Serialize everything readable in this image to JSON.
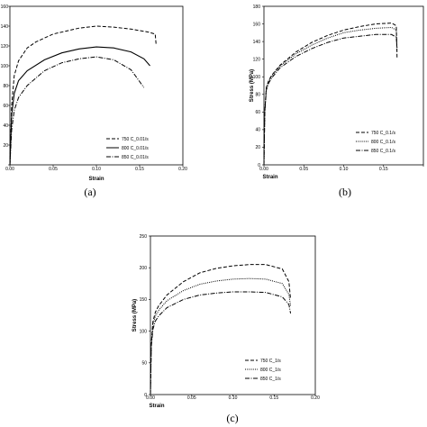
{
  "chart_data": [
    {
      "type": "line",
      "panel_label": "(a)",
      "xlabel": "Strain",
      "ylabel": "",
      "xlim": [
        0,
        0.2
      ],
      "ylim": [
        0,
        160
      ],
      "xticks": [
        "0.00",
        "0.05",
        "0.10",
        "0.15",
        "0.20"
      ],
      "yticks": [
        "",
        "20",
        "40",
        "60",
        "80",
        "100",
        "120",
        "140",
        "160"
      ],
      "legend_position": "bottom-right",
      "series": [
        {
          "name": "750 C_0.01/s",
          "style": "dashed",
          "x": [
            0,
            0.002,
            0.005,
            0.01,
            0.02,
            0.03,
            0.05,
            0.08,
            0.1,
            0.12,
            0.14,
            0.16,
            0.168,
            0.169
          ],
          "y": [
            0,
            60,
            90,
            105,
            118,
            124,
            132,
            138,
            140,
            139,
            137,
            134,
            132,
            122
          ]
        },
        {
          "name": "800 C_0.01/s",
          "style": "solid",
          "x": [
            0,
            0.002,
            0.005,
            0.01,
            0.02,
            0.04,
            0.06,
            0.08,
            0.1,
            0.12,
            0.14,
            0.155,
            0.162
          ],
          "y": [
            0,
            50,
            72,
            85,
            95,
            106,
            113,
            117,
            119,
            118,
            114,
            107,
            100
          ]
        },
        {
          "name": "850 C_0.01/s",
          "style": "dash-dot",
          "x": [
            0,
            0.002,
            0.005,
            0.01,
            0.02,
            0.04,
            0.06,
            0.08,
            0.1,
            0.12,
            0.14,
            0.155
          ],
          "y": [
            0,
            35,
            55,
            68,
            80,
            95,
            103,
            107,
            109,
            106,
            96,
            78
          ]
        }
      ]
    },
    {
      "type": "line",
      "panel_label": "(b)",
      "xlabel": "Strain",
      "ylabel": "Stress (MPa)",
      "xlim": [
        0,
        0.2
      ],
      "ylim": [
        0,
        180
      ],
      "xticks": [
        "0.00",
        "0.05",
        "0.10",
        "0.15",
        ""
      ],
      "yticks": [
        "0",
        "20",
        "40",
        "60",
        "80",
        "100",
        "120",
        "140",
        "160",
        "180"
      ],
      "legend_position": "bottom-right",
      "series": [
        {
          "name": "750 C_0.1/s",
          "style": "dashed",
          "x": [
            0,
            0.001,
            0.003,
            0.006,
            0.01,
            0.02,
            0.04,
            0.06,
            0.08,
            0.1,
            0.12,
            0.14,
            0.16,
            0.166,
            0.167
          ],
          "y": [
            0,
            60,
            88,
            96,
            102,
            113,
            128,
            139,
            147,
            153,
            157,
            160,
            161,
            158,
            120
          ]
        },
        {
          "name": "800 C_0.1/s",
          "style": "dotted",
          "x": [
            0,
            0.001,
            0.003,
            0.006,
            0.01,
            0.02,
            0.04,
            0.06,
            0.08,
            0.1,
            0.12,
            0.14,
            0.16,
            0.166,
            0.167
          ],
          "y": [
            0,
            60,
            87,
            95,
            101,
            112,
            126,
            136,
            144,
            150,
            153,
            155,
            156,
            153,
            128
          ]
        },
        {
          "name": "850 C_0.1/s",
          "style": "dash-dot",
          "x": [
            0,
            0.001,
            0.003,
            0.006,
            0.01,
            0.02,
            0.04,
            0.06,
            0.08,
            0.1,
            0.12,
            0.14,
            0.16,
            0.166,
            0.167
          ],
          "y": [
            0,
            58,
            85,
            93,
            99,
            110,
            123,
            132,
            139,
            144,
            146,
            148,
            148,
            145,
            133
          ]
        }
      ]
    },
    {
      "type": "line",
      "panel_label": "(c)",
      "xlabel": "Strain",
      "ylabel": "Stress (MPa)",
      "xlim": [
        0,
        0.2
      ],
      "ylim": [
        0,
        250
      ],
      "xticks": [
        "0.00",
        "0.05",
        "0.10",
        "0.15",
        "0.20"
      ],
      "yticks": [
        "0",
        "50",
        "100",
        "150",
        "200",
        "250"
      ],
      "legend_position": "bottom-right",
      "series": [
        {
          "name": "750 C_1/s",
          "style": "dashed",
          "x": [
            0,
            0.001,
            0.003,
            0.006,
            0.01,
            0.02,
            0.04,
            0.06,
            0.08,
            0.1,
            0.12,
            0.14,
            0.16,
            0.168,
            0.17
          ],
          "y": [
            0,
            80,
            115,
            130,
            140,
            157,
            178,
            192,
            199,
            203,
            205,
            205,
            198,
            178,
            150
          ]
        },
        {
          "name": "800 C_1/s",
          "style": "dotted",
          "x": [
            0,
            0.001,
            0.003,
            0.006,
            0.01,
            0.02,
            0.04,
            0.06,
            0.08,
            0.1,
            0.12,
            0.14,
            0.16,
            0.168,
            0.17
          ],
          "y": [
            0,
            78,
            110,
            124,
            133,
            148,
            164,
            174,
            179,
            182,
            183,
            182,
            175,
            158,
            140
          ]
        },
        {
          "name": "850 C_1/s",
          "style": "dash-dot",
          "x": [
            0,
            0.001,
            0.003,
            0.006,
            0.01,
            0.02,
            0.04,
            0.06,
            0.08,
            0.1,
            0.12,
            0.14,
            0.16,
            0.168,
            0.17
          ],
          "y": [
            0,
            75,
            103,
            116,
            124,
            137,
            150,
            157,
            160,
            162,
            162,
            161,
            154,
            142,
            128
          ]
        }
      ]
    }
  ]
}
